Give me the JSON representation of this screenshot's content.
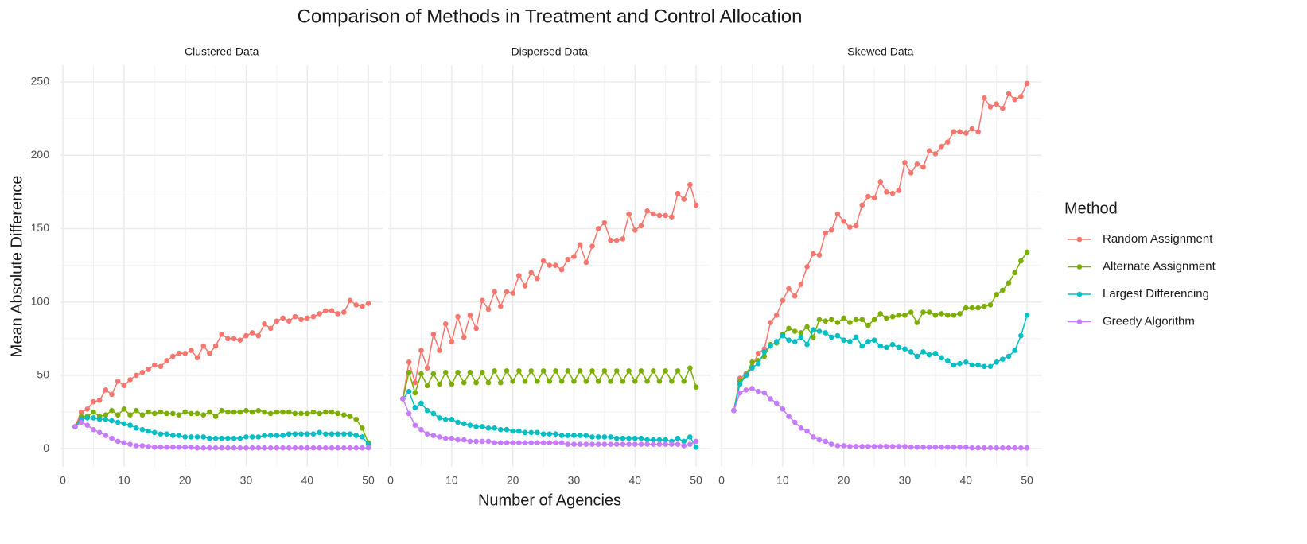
{
  "title": "Comparison of Methods in Treatment and Control Allocation",
  "x_label": "Number of Agencies",
  "y_label": "Mean Absolute Difference",
  "legend": {
    "title": "Method",
    "series": [
      {
        "name": "Random Assignment",
        "color": "#F8766D"
      },
      {
        "name": "Alternate Assignment",
        "color": "#7CAE00"
      },
      {
        "name": "Largest Differencing",
        "color": "#00BFC4"
      },
      {
        "name": "Greedy Algorithm",
        "color": "#C77CFF"
      }
    ]
  },
  "chart_data": [
    {
      "type": "line",
      "title": "Clustered Data",
      "x": [
        2,
        3,
        4,
        5,
        6,
        7,
        8,
        9,
        10,
        11,
        12,
        13,
        14,
        15,
        16,
        17,
        18,
        19,
        20,
        21,
        22,
        23,
        24,
        25,
        26,
        27,
        28,
        29,
        30,
        31,
        32,
        33,
        34,
        35,
        36,
        37,
        38,
        39,
        40,
        41,
        42,
        43,
        44,
        45,
        46,
        47,
        48,
        49,
        50
      ],
      "series": [
        {
          "values": [
            15,
            25,
            27,
            32,
            33,
            40,
            37,
            46,
            43,
            47,
            50,
            52,
            54,
            57,
            56,
            60,
            63,
            65,
            65,
            67,
            62,
            70,
            65,
            70,
            78,
            75,
            75,
            74,
            77,
            79,
            77,
            85,
            82,
            87,
            89,
            87,
            90,
            88,
            89,
            90,
            92,
            94,
            94,
            92,
            93,
            101,
            98,
            97,
            99
          ]
        },
        {
          "values": [
            15,
            22,
            22,
            25,
            22,
            23,
            26,
            23,
            27,
            23,
            26,
            23,
            25,
            24,
            25,
            24,
            24,
            23,
            25,
            24,
            24,
            23,
            25,
            22,
            26,
            25,
            25,
            25,
            26,
            25,
            26,
            25,
            24,
            25,
            25,
            25,
            24,
            24,
            24,
            25,
            24,
            25,
            25,
            24,
            23,
            22,
            20,
            14,
            4
          ]
        },
        {
          "values": [
            15,
            20,
            21,
            21,
            20,
            20,
            19,
            18,
            17,
            16,
            14,
            13,
            12,
            11,
            10,
            10,
            9,
            9,
            8,
            8,
            8,
            8,
            7,
            7,
            7,
            7,
            7,
            7,
            8,
            8,
            8,
            9,
            9,
            9,
            9,
            10,
            10,
            10,
            10,
            10,
            11,
            10,
            10,
            10,
            10,
            10,
            9,
            8,
            3
          ]
        },
        {
          "values": [
            15,
            18,
            16,
            13,
            11,
            9,
            7,
            5,
            4,
            3,
            2,
            2,
            1.5,
            1,
            1,
            1,
            1,
            1,
            1,
            1,
            0.5,
            0.5,
            0.5,
            0.5,
            0.5,
            0.5,
            0.5,
            0.5,
            0.5,
            0.5,
            0.5,
            0.5,
            0.5,
            0.5,
            0.5,
            0.5,
            0.5,
            0.5,
            0.5,
            0.5,
            0.5,
            0.5,
            0.5,
            0.5,
            0.5,
            0.5,
            0.5,
            0.5,
            0.5
          ]
        }
      ],
      "xlim": [
        -0.4,
        52.4
      ],
      "ylim": [
        -12.4,
        261.4
      ],
      "xticks": [
        0,
        10,
        20,
        30,
        40,
        50
      ],
      "yticks": [
        0,
        50,
        100,
        150,
        200,
        250
      ],
      "grid": true
    },
    {
      "type": "line",
      "title": "Dispersed Data",
      "x": [
        2,
        3,
        4,
        5,
        6,
        7,
        8,
        9,
        10,
        11,
        12,
        13,
        14,
        15,
        16,
        17,
        18,
        19,
        20,
        21,
        22,
        23,
        24,
        25,
        26,
        27,
        28,
        29,
        30,
        31,
        32,
        33,
        34,
        35,
        36,
        37,
        38,
        39,
        40,
        41,
        42,
        43,
        44,
        45,
        46,
        47,
        48,
        49,
        50
      ],
      "series": [
        {
          "values": [
            34,
            59,
            45,
            67,
            55,
            78,
            67,
            85,
            73,
            90,
            76,
            91,
            82,
            101,
            95,
            107,
            97,
            107,
            106,
            118,
            111,
            120,
            116,
            128,
            125,
            125,
            122,
            129,
            131,
            139,
            127,
            138,
            150,
            154,
            142,
            142,
            143,
            160,
            149,
            152,
            162,
            160,
            159,
            159,
            158,
            174,
            170,
            180,
            166
          ]
        },
        {
          "values": [
            34,
            52,
            38,
            51,
            43,
            51,
            44,
            52,
            44,
            52,
            45,
            52,
            45,
            52,
            45,
            53,
            45,
            53,
            46,
            53,
            46,
            53,
            46,
            53,
            46,
            53,
            46,
            53,
            46,
            53,
            46,
            53,
            46,
            53,
            46,
            53,
            46,
            53,
            46,
            53,
            46,
            53,
            46,
            53,
            46,
            53,
            46,
            55,
            42
          ]
        },
        {
          "values": [
            34,
            39,
            28,
            31,
            26,
            24,
            21,
            20,
            20,
            18,
            17,
            16,
            15,
            15,
            14,
            14,
            13,
            13,
            12,
            12,
            11,
            11,
            11,
            10,
            10,
            10,
            9,
            9,
            9,
            9,
            9,
            8,
            8,
            8,
            8,
            7,
            7,
            7,
            7,
            7,
            6,
            6,
            6,
            6,
            5,
            7,
            5,
            8,
            1
          ]
        },
        {
          "values": [
            34,
            24,
            16,
            13,
            10,
            9,
            8,
            7,
            7,
            6,
            6,
            5,
            5,
            5,
            5,
            4,
            4,
            4,
            4,
            4,
            4,
            4,
            4,
            4,
            4,
            4,
            4,
            3,
            3,
            3,
            3,
            3,
            3,
            3,
            3,
            3,
            3,
            3,
            3,
            3,
            3,
            3,
            3,
            3,
            3,
            3,
            2,
            3,
            5
          ]
        }
      ],
      "xlim": [
        -0.4,
        52.4
      ],
      "ylim": [
        -12.4,
        261.4
      ],
      "xticks": [
        0,
        10,
        20,
        30,
        40,
        50
      ],
      "yticks": [
        0,
        50,
        100,
        150,
        200,
        250
      ],
      "grid": true
    },
    {
      "type": "line",
      "title": "Skewed Data",
      "x": [
        2,
        3,
        4,
        5,
        6,
        7,
        8,
        9,
        10,
        11,
        12,
        13,
        14,
        15,
        16,
        17,
        18,
        19,
        20,
        21,
        22,
        23,
        24,
        25,
        26,
        27,
        28,
        29,
        30,
        31,
        32,
        33,
        34,
        35,
        36,
        37,
        38,
        39,
        40,
        41,
        42,
        43,
        44,
        45,
        46,
        47,
        48,
        49,
        50
      ],
      "series": [
        {
          "values": [
            26,
            48,
            51,
            56,
            65,
            68,
            86,
            91,
            101,
            109,
            104,
            112,
            124,
            133,
            132,
            147,
            149,
            160,
            155,
            151,
            152,
            166,
            172,
            171,
            182,
            175,
            174,
            176,
            195,
            188,
            194,
            192,
            203,
            201,
            206,
            209,
            216,
            216,
            215,
            218,
            216,
            239,
            233,
            235,
            232,
            242,
            238,
            240,
            249
          ]
        },
        {
          "values": [
            26,
            46,
            50,
            59,
            60,
            63,
            71,
            72,
            78,
            82,
            80,
            79,
            83,
            76,
            88,
            87,
            88,
            86,
            89,
            86,
            88,
            88,
            84,
            88,
            92,
            89,
            90,
            91,
            91,
            93,
            86,
            93,
            93,
            91,
            92,
            91,
            91,
            92,
            96,
            96,
            96,
            97,
            98,
            105,
            108,
            113,
            120,
            128,
            134
          ]
        },
        {
          "values": [
            26,
            44,
            50,
            55,
            58,
            66,
            70,
            73,
            77,
            74,
            73,
            76,
            71,
            81,
            80,
            79,
            76,
            77,
            74,
            73,
            76,
            70,
            73,
            74,
            70,
            69,
            71,
            69,
            68,
            66,
            63,
            66,
            64,
            65,
            62,
            60,
            57,
            58,
            59,
            57,
            57,
            56,
            56,
            59,
            61,
            63,
            67,
            77,
            91
          ]
        },
        {
          "values": [
            26,
            38,
            40,
            41,
            39,
            38,
            34,
            31,
            27,
            22,
            18,
            14,
            12,
            8,
            6,
            5,
            3,
            2,
            2,
            1.5,
            1.5,
            1.5,
            1.5,
            1.5,
            1.5,
            1.5,
            1.5,
            1.5,
            1.5,
            1,
            1,
            1,
            1,
            1,
            1,
            1,
            1,
            1,
            1,
            0.5,
            0.5,
            0.5,
            0.5,
            0.5,
            0.5,
            0.5,
            0.5,
            0.5,
            0.5
          ]
        }
      ],
      "xlim": [
        -0.4,
        52.4
      ],
      "ylim": [
        -12.4,
        261.4
      ],
      "xticks": [
        0,
        10,
        20,
        30,
        40,
        50
      ],
      "yticks": [
        0,
        50,
        100,
        150,
        200,
        250
      ],
      "grid": true
    }
  ]
}
